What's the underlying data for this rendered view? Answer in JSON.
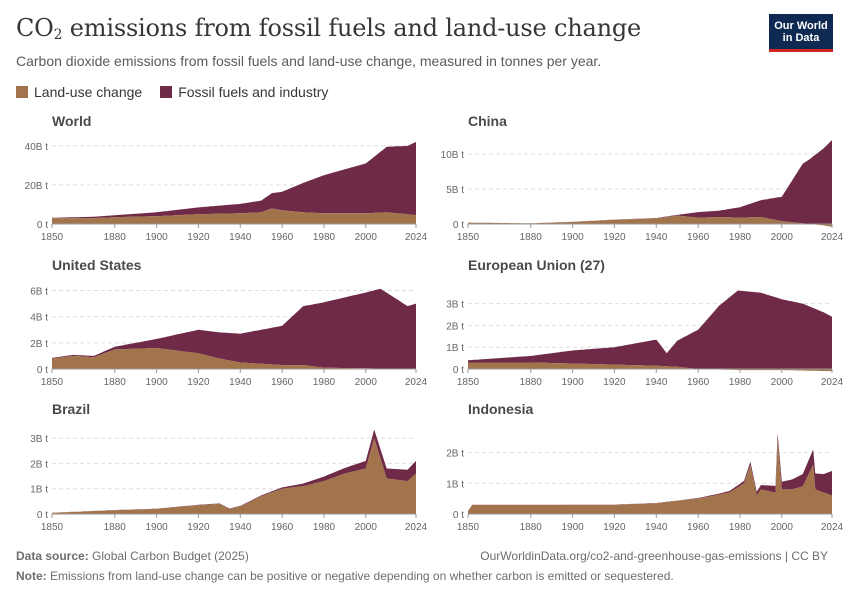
{
  "header": {
    "title_main": "CO",
    "title_sub": "2",
    "title_rest": " emissions from fossil fuels and land-use change",
    "subtitle": "Carbon dioxide emissions from fossil fuels and land-use change, measured in tonnes per year.",
    "logo_line1": "Our World",
    "logo_line2": "in Data"
  },
  "legend": [
    {
      "label": "Land-use change",
      "color": "#a2744b"
    },
    {
      "label": "Fossil fuels and industry",
      "color": "#6f2a48"
    }
  ],
  "footer": {
    "source_label": "Data source:",
    "source_value": "Global Carbon Budget (2025)",
    "url": "OurWorldinData.org/co2-and-greenhouse-gas-emissions | CC BY",
    "note_label": "Note:",
    "note_value": "Emissions from land-use change can be positive or negative depending on whether carbon is emitted or sequestered."
  },
  "colors": {
    "land": "#a2744b",
    "fossil": "#6f2a48",
    "grid": "#dddddd",
    "axis": "#999999"
  },
  "chart_data": [
    {
      "type": "area",
      "title": "World",
      "x_ticks": [
        1850,
        1880,
        1900,
        1920,
        1940,
        1960,
        1980,
        2000,
        2024
      ],
      "y_ticks": [
        {
          "v": 0,
          "label": "0 t"
        },
        {
          "v": 20,
          "label": "20B t"
        },
        {
          "v": 40,
          "label": "40B t"
        }
      ],
      "ylim": [
        0,
        43
      ],
      "series": [
        {
          "name": "Land-use change",
          "x": [
            1850,
            1870,
            1880,
            1900,
            1920,
            1940,
            1950,
            1955,
            1960,
            1970,
            1980,
            1990,
            2000,
            2010,
            2020,
            2024
          ],
          "values": [
            3,
            3,
            3.5,
            4,
            5,
            5.5,
            6,
            8,
            7,
            6,
            5.5,
            5.5,
            5.5,
            6,
            5,
            4.5
          ]
        },
        {
          "name": "Fossil fuels and industry",
          "x": [
            1850,
            1870,
            1880,
            1900,
            1920,
            1940,
            1950,
            1960,
            1970,
            1980,
            1990,
            2000,
            2010,
            2020,
            2024
          ],
          "values": [
            0.2,
            0.7,
            1,
            2,
            3.5,
            4.8,
            6,
            9.5,
            15,
            19.5,
            22.5,
            25.5,
            33.5,
            35,
            37.5
          ]
        }
      ]
    },
    {
      "type": "area",
      "title": "China",
      "x_ticks": [
        1850,
        1880,
        1900,
        1920,
        1940,
        1960,
        1980,
        2000,
        2024
      ],
      "y_ticks": [
        {
          "v": 0,
          "label": "0 t"
        },
        {
          "v": 5,
          "label": "5B t"
        },
        {
          "v": 10,
          "label": "10B t"
        }
      ],
      "ylim": [
        -0.5,
        12
      ],
      "series": [
        {
          "name": "Land-use change",
          "x": [
            1850,
            1880,
            1900,
            1920,
            1940,
            1950,
            1960,
            1970,
            1980,
            1990,
            2000,
            2010,
            2020,
            2024
          ],
          "values": [
            0.2,
            0.1,
            0.3,
            0.6,
            0.8,
            1.2,
            0.9,
            1.0,
            0.9,
            1.0,
            0.4,
            0.1,
            -0.2,
            -0.4
          ]
        },
        {
          "name": "Fossil fuels and industry",
          "x": [
            1850,
            1900,
            1940,
            1950,
            1960,
            1970,
            1980,
            1990,
            2000,
            2005,
            2010,
            2020,
            2024
          ],
          "values": [
            0,
            0.01,
            0.05,
            0.1,
            0.8,
            0.9,
            1.5,
            2.4,
            3.5,
            6,
            8.5,
            10.8,
            12
          ]
        }
      ]
    },
    {
      "type": "area",
      "title": "United States",
      "x_ticks": [
        1850,
        1880,
        1900,
        1920,
        1940,
        1960,
        1980,
        2000,
        2024
      ],
      "y_ticks": [
        {
          "v": 0,
          "label": "0 t"
        },
        {
          "v": 2,
          "label": "2B t"
        },
        {
          "v": 4,
          "label": "4B t"
        },
        {
          "v": 6,
          "label": "6B t"
        }
      ],
      "ylim": [
        0,
        6.5
      ],
      "series": [
        {
          "name": "Land-use change",
          "x": [
            1850,
            1860,
            1870,
            1880,
            1900,
            1920,
            1930,
            1940,
            1960,
            1970,
            1980,
            2000,
            2024
          ],
          "values": [
            0.8,
            1,
            0.9,
            1.5,
            1.6,
            1.2,
            0.8,
            0.5,
            0.3,
            0.3,
            0.1,
            0.05,
            0
          ]
        },
        {
          "name": "Fossil fuels and industry",
          "x": [
            1850,
            1870,
            1880,
            1900,
            1920,
            1930,
            1940,
            1960,
            1970,
            1980,
            2000,
            2007,
            2020,
            2024
          ],
          "values": [
            0.05,
            0.1,
            0.2,
            0.7,
            1.8,
            2,
            2.2,
            3,
            4.5,
            5,
            5.8,
            6.1,
            4.8,
            5
          ]
        }
      ]
    },
    {
      "type": "area",
      "title": "European Union (27)",
      "x_ticks": [
        1850,
        1880,
        1900,
        1920,
        1940,
        1960,
        1980,
        2000,
        2024
      ],
      "y_ticks": [
        {
          "v": 0,
          "label": "0 t"
        },
        {
          "v": 1,
          "label": "1B t"
        },
        {
          "v": 2,
          "label": "2B t"
        },
        {
          "v": 3,
          "label": "3B t"
        }
      ],
      "ylim": [
        -0.1,
        3.9
      ],
      "series": [
        {
          "name": "Land-use change",
          "x": [
            1850,
            1880,
            1900,
            1920,
            1940,
            1950,
            1960,
            1980,
            2000,
            2024
          ],
          "values": [
            0.3,
            0.3,
            0.25,
            0.2,
            0.15,
            0.1,
            0,
            -0.05,
            -0.05,
            -0.1
          ]
        },
        {
          "name": "Fossil fuels and industry",
          "x": [
            1850,
            1880,
            1900,
            1920,
            1940,
            1945,
            1950,
            1960,
            1970,
            1979,
            1990,
            2000,
            2010,
            2020,
            2024
          ],
          "values": [
            0.1,
            0.3,
            0.6,
            0.8,
            1.2,
            0.6,
            1.2,
            1.8,
            2.9,
            3.6,
            3.5,
            3.2,
            3.0,
            2.6,
            2.4
          ]
        }
      ]
    },
    {
      "type": "area",
      "title": "Brazil",
      "x_ticks": [
        1850,
        1880,
        1900,
        1920,
        1940,
        1960,
        1980,
        2000,
        2024
      ],
      "y_ticks": [
        {
          "v": 0,
          "label": "0 t"
        },
        {
          "v": 1,
          "label": "1B t"
        },
        {
          "v": 2,
          "label": "2B t"
        },
        {
          "v": 3,
          "label": "3B t"
        }
      ],
      "ylim": [
        0,
        3.4
      ],
      "series": [
        {
          "name": "Land-use change",
          "x": [
            1850,
            1880,
            1900,
            1920,
            1930,
            1935,
            1940,
            1950,
            1960,
            1970,
            1980,
            1990,
            2000,
            2004,
            2010,
            2020,
            2024
          ],
          "values": [
            0.05,
            0.15,
            0.2,
            0.35,
            0.4,
            0.2,
            0.3,
            0.7,
            1,
            1.1,
            1.3,
            1.6,
            1.8,
            3,
            1.4,
            1.3,
            1.6
          ]
        },
        {
          "name": "Fossil fuels and industry",
          "x": [
            1850,
            1900,
            1940,
            1960,
            1970,
            1980,
            1990,
            2000,
            2010,
            2020,
            2024
          ],
          "values": [
            0,
            0.01,
            0.02,
            0.05,
            0.1,
            0.18,
            0.22,
            0.3,
            0.4,
            0.45,
            0.5
          ]
        }
      ]
    },
    {
      "type": "area",
      "title": "Indonesia",
      "x_ticks": [
        1850,
        1880,
        1900,
        1920,
        1940,
        1960,
        1980,
        2000,
        2024
      ],
      "y_ticks": [
        {
          "v": 0,
          "label": "0 t"
        },
        {
          "v": 1,
          "label": "1B t"
        },
        {
          "v": 2,
          "label": "2B t"
        }
      ],
      "ylim": [
        0,
        2.8
      ],
      "series": [
        {
          "name": "Land-use change",
          "x": [
            1850,
            1852,
            1880,
            1900,
            1920,
            1940,
            1960,
            1975,
            1982,
            1985,
            1988,
            1990,
            1997,
            1998,
            2000,
            2005,
            2010,
            2015,
            2016,
            2020,
            2024
          ],
          "values": [
            0.1,
            0.3,
            0.3,
            0.3,
            0.3,
            0.35,
            0.5,
            0.7,
            1.0,
            1.6,
            0.6,
            0.8,
            0.7,
            2.4,
            0.8,
            0.8,
            0.9,
            1.6,
            0.8,
            0.7,
            0.6
          ]
        },
        {
          "name": "Fossil fuels and industry",
          "x": [
            1850,
            1950,
            1970,
            1980,
            1990,
            2000,
            2010,
            2020,
            2024
          ],
          "values": [
            0,
            0.01,
            0.03,
            0.07,
            0.14,
            0.25,
            0.4,
            0.6,
            0.8
          ]
        }
      ]
    }
  ]
}
